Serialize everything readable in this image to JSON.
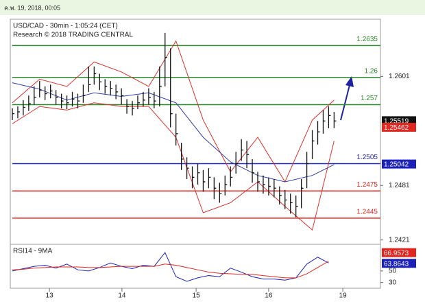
{
  "header": {
    "timestamp": "ค.พ. 19, 2018, 00:05"
  },
  "chart_data": [
    {
      "type": "ohlc",
      "title": "USD/CAD - 30min - 1:05:24 (CET)",
      "subtitle": "Research © 2018 TRADING CENTRAL",
      "xlim": [
        0,
        67.5
      ],
      "xticks": [
        {
          "value": 6.8,
          "label": "13"
        },
        {
          "value": 20.1,
          "label": "14"
        },
        {
          "value": 33.7,
          "label": "15"
        },
        {
          "value": 47,
          "label": "16"
        },
        {
          "value": 60.6,
          "label": "19"
        }
      ],
      "ylim": [
        1.2417,
        1.2664
      ],
      "yticks": [
        1.2601,
        1.2481,
        1.2421
      ],
      "color": "#111111",
      "x": [
        0,
        1,
        2,
        3,
        4,
        5,
        6,
        7,
        8,
        9,
        10,
        11,
        12,
        13,
        14,
        15,
        16,
        17,
        18,
        19,
        20,
        21,
        22,
        23,
        24,
        25,
        26,
        27,
        28,
        29,
        30,
        31,
        32,
        33,
        34,
        35,
        36,
        37,
        38,
        39,
        40,
        41,
        42,
        43,
        44,
        45,
        46,
        47,
        48,
        49,
        50,
        51,
        52,
        53,
        54,
        55,
        56,
        57,
        58,
        59
      ],
      "high": [
        1.2566,
        1.2568,
        1.2575,
        1.258,
        1.259,
        1.2596,
        1.259,
        1.2592,
        1.2586,
        1.2582,
        1.258,
        1.2584,
        1.2582,
        1.2592,
        1.2612,
        1.2612,
        1.2604,
        1.2598,
        1.2596,
        1.2592,
        1.2588,
        1.2576,
        1.2574,
        1.258,
        1.2584,
        1.2588,
        1.2584,
        1.2612,
        1.2649,
        1.2632,
        1.256,
        1.2528,
        1.2512,
        1.2502,
        1.2505,
        1.2498,
        1.25,
        1.249,
        1.2484,
        1.2492,
        1.2502,
        1.2518,
        1.2532,
        1.253,
        1.251,
        1.2496,
        1.2492,
        1.249,
        1.2488,
        1.248,
        1.2476,
        1.2472,
        1.247,
        1.2488,
        1.2518,
        1.2542,
        1.2552,
        1.2564,
        1.2568,
        1.2562
      ],
      "low": [
        1.2553,
        1.2555,
        1.2558,
        1.2563,
        1.257,
        1.2578,
        1.2575,
        1.2577,
        1.257,
        1.2566,
        1.2565,
        1.2568,
        1.2566,
        1.2572,
        1.2584,
        1.2592,
        1.2586,
        1.2582,
        1.258,
        1.2576,
        1.257,
        1.256,
        1.2558,
        1.2565,
        1.2568,
        1.257,
        1.2566,
        1.2568,
        1.259,
        1.2545,
        1.2525,
        1.2498,
        1.2488,
        1.2478,
        1.2482,
        1.2474,
        1.2478,
        1.2466,
        1.2462,
        1.247,
        1.248,
        1.2494,
        1.2508,
        1.25,
        1.2484,
        1.2474,
        1.2472,
        1.247,
        1.2468,
        1.246,
        1.2455,
        1.245,
        1.2446,
        1.2456,
        1.2478,
        1.251,
        1.2526,
        1.2538,
        1.2544,
        1.2544
      ],
      "close": [
        1.256,
        1.2562,
        1.2567,
        1.2571,
        1.2578,
        1.2586,
        1.2582,
        1.2585,
        1.2578,
        1.2574,
        1.2572,
        1.2576,
        1.2574,
        1.258,
        1.2592,
        1.2604,
        1.2595,
        1.259,
        1.2588,
        1.2584,
        1.258,
        1.2568,
        1.2566,
        1.2572,
        1.2575,
        1.2578,
        1.2574,
        1.259,
        1.2622,
        1.256,
        1.2538,
        1.251,
        1.25,
        1.249,
        1.2495,
        1.2485,
        1.249,
        1.2478,
        1.2472,
        1.2482,
        1.249,
        1.2505,
        1.252,
        1.2515,
        1.2495,
        1.2485,
        1.2482,
        1.248,
        1.2478,
        1.247,
        1.2465,
        1.2462,
        1.2458,
        1.2478,
        1.2505,
        1.253,
        1.254,
        1.2552,
        1.2558,
        1.2552
      ],
      "series": [
        {
          "color": "#d9302a",
          "x": [
            0,
            5,
            10,
            15,
            20,
            25,
            30,
            35,
            40,
            45,
            50,
            55,
            59
          ],
          "values": [
            1.2572,
            1.2598,
            1.259,
            1.2617,
            1.2606,
            1.259,
            1.264,
            1.2553,
            1.2496,
            1.2534,
            1.2485,
            1.2553,
            1.2575
          ]
        },
        {
          "color": "#d9302a",
          "x": [
            0,
            5,
            10,
            15,
            20,
            25,
            30,
            35,
            40,
            45,
            50,
            55,
            59
          ],
          "values": [
            1.2549,
            1.2568,
            1.2564,
            1.2572,
            1.2568,
            1.2568,
            1.2534,
            1.2451,
            1.2462,
            1.2485,
            1.2458,
            1.2432,
            1.253
          ]
        },
        {
          "color": "#2e3fa6",
          "x": [
            0,
            5,
            10,
            15,
            20,
            25,
            30,
            35,
            40,
            45,
            50,
            55,
            59
          ],
          "values": [
            1.2594,
            1.2587,
            1.2575,
            1.2583,
            1.2579,
            1.2583,
            1.2572,
            1.2534,
            1.2507,
            1.2492,
            1.2485,
            1.2492,
            1.2504
          ]
        }
      ],
      "levels": [
        {
          "value": 1.2635,
          "color": "#2b8a2b"
        },
        {
          "value": 1.26,
          "color": "#2b8a2b"
        },
        {
          "value": 1.257,
          "color": "#2b8a2b"
        },
        {
          "value": 1.2505,
          "color": "#1c22b8"
        },
        {
          "value": 1.2475,
          "color": "#e0261e"
        },
        {
          "value": 1.2445,
          "color": "#e0261e"
        }
      ],
      "markers": [
        {
          "value": 1.25519,
          "color": "#111111"
        },
        {
          "value": 1.25462,
          "color": "#e0261e"
        },
        {
          "value": 1.25042,
          "color": "#1c22b8"
        }
      ]
    },
    {
      "type": "line",
      "title": "RSI14 - 9MA",
      "ylim": [
        20,
        94
      ],
      "yticks": [
        50,
        30
      ],
      "series": [
        {
          "color": "#1c22b8",
          "x": [
            0,
            2,
            4,
            6,
            8,
            10,
            12,
            14,
            16,
            18,
            20,
            22,
            24,
            26,
            28,
            30,
            32,
            34,
            36,
            38,
            40,
            42,
            44,
            46,
            48,
            50,
            52,
            54,
            56,
            58
          ],
          "values": [
            50,
            54,
            58,
            60,
            55,
            62,
            52,
            50,
            56,
            64,
            58,
            54,
            60,
            58,
            82,
            40,
            32,
            38,
            42,
            40,
            55,
            48,
            40,
            36,
            36,
            34,
            38,
            62,
            74,
            64
          ]
        },
        {
          "color": "#e0261e",
          "x": [
            0,
            2,
            4,
            6,
            8,
            10,
            12,
            14,
            16,
            18,
            20,
            22,
            24,
            26,
            28,
            30,
            32,
            34,
            36,
            38,
            40,
            42,
            44,
            46,
            48,
            50,
            52,
            54,
            56,
            58
          ],
          "values": [
            52,
            53,
            55,
            56,
            57,
            57,
            57,
            56,
            56,
            57,
            58,
            58,
            58,
            58,
            62,
            60,
            56,
            52,
            48,
            46,
            45,
            44,
            44,
            42,
            40,
            38,
            38,
            45,
            56,
            67
          ]
        }
      ],
      "markers": [
        {
          "value": 66.9573,
          "color": "#e0261e"
        },
        {
          "value": 63.8643,
          "color": "#1c22b8"
        }
      ]
    }
  ]
}
